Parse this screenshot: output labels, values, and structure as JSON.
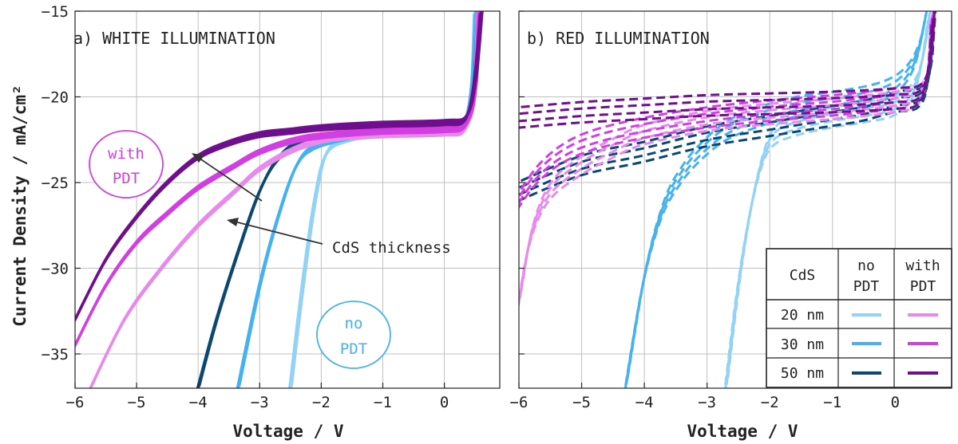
{
  "colors": {
    "no_pdt_20": "#92d2f4",
    "no_pdt_30": "#45b2ee",
    "no_pdt_50": "#0a4872",
    "with_pdt_20": "#e889ec",
    "with_pdt_30": "#d23fe0",
    "with_pdt_50": "#6e0f8c",
    "grid": "#bfbfbf",
    "arrow": "#333333"
  },
  "axes": {
    "xlabel": "Voltage / V",
    "ylabel": "Current Density / mA/cm²",
    "xlim": [
      -6,
      0.9
    ],
    "ylim": [
      -37,
      -15
    ],
    "xticks": [
      "-6",
      "-5",
      "-4",
      "-3",
      "-2",
      "-1",
      "0"
    ],
    "yticks": [
      "-15",
      "-20",
      "-25",
      "-30",
      "-35"
    ]
  },
  "annotations": {
    "panel_a": "a) WHITE ILLUMINATION",
    "panel_b": "b) RED ILLUMINATION",
    "with_pdt_line1": "with",
    "with_pdt_line2": "PDT",
    "no_pdt_line1": "no",
    "no_pdt_line2": "PDT",
    "cds_thickness": "CdS thickness"
  },
  "legend": {
    "col_header": "CdS",
    "no_pdt_line1": "no",
    "no_pdt_line2": "PDT",
    "with_pdt_line1": "with",
    "with_pdt_line2": "PDT",
    "rows": [
      "20 nm",
      "30 nm",
      "50 nm"
    ],
    "placement": "bottom-right"
  },
  "chart_data": [
    {
      "type": "line",
      "title": "a) WHITE ILLUMINATION",
      "xlabel": "Voltage / V",
      "ylabel": "Current Density / mA/cm²",
      "xlim": [
        -6,
        0.9
      ],
      "ylim": [
        -37,
        -15
      ],
      "grid": true,
      "line_style": "solid",
      "series": [
        {
          "key": "no_pdt_20",
          "x": [
            -2.5,
            -2.3,
            -2.1,
            -1.9,
            -1.5,
            -1.0,
            -0.5,
            0.0,
            0.3,
            0.45,
            0.5
          ],
          "y": [
            -37.0,
            -31.0,
            -26.0,
            -23.2,
            -22.4,
            -22.2,
            -22.1,
            -22.0,
            -21.8,
            -19.5,
            -15.0
          ]
        },
        {
          "key": "no_pdt_30",
          "x": [
            -3.35,
            -3.0,
            -2.7,
            -2.4,
            -2.1,
            -1.5,
            -1.0,
            0.0,
            0.3,
            0.45,
            0.52
          ],
          "y": [
            -37.0,
            -31.0,
            -27.0,
            -24.0,
            -22.9,
            -22.3,
            -22.1,
            -21.9,
            -21.6,
            -19.5,
            -15.0
          ]
        },
        {
          "key": "no_pdt_50",
          "x": [
            -4.0,
            -3.7,
            -3.3,
            -3.0,
            -2.7,
            -2.3,
            -1.5,
            -1.0,
            0.0,
            0.35,
            0.5,
            0.55
          ],
          "y": [
            -37.0,
            -33.0,
            -28.5,
            -25.5,
            -23.6,
            -22.6,
            -22.1,
            -21.9,
            -21.7,
            -21.4,
            -19.0,
            -15.0
          ]
        },
        {
          "key": "with_pdt_20",
          "x": [
            -5.75,
            -5.2,
            -4.6,
            -4.0,
            -3.4,
            -3.0,
            -2.4,
            -1.8,
            -1.0,
            0.0,
            0.35,
            0.5,
            0.55
          ],
          "y": [
            -37.0,
            -33.0,
            -30.0,
            -27.5,
            -25.5,
            -24.2,
            -23.0,
            -22.4,
            -22.2,
            -22.1,
            -21.8,
            -19.5,
            -15.0
          ]
        },
        {
          "key": "with_pdt_30",
          "x": [
            -6.0,
            -5.5,
            -5.0,
            -4.5,
            -4.0,
            -3.4,
            -3.0,
            -2.4,
            -1.8,
            -1.0,
            0.0,
            0.35,
            0.5,
            0.57
          ],
          "y": [
            -34.5,
            -31.0,
            -28.5,
            -26.8,
            -25.3,
            -24.0,
            -23.2,
            -22.5,
            -22.2,
            -22.0,
            -21.9,
            -21.6,
            -19.5,
            -15.0
          ]
        },
        {
          "key": "with_pdt_50",
          "x": [
            -6.0,
            -5.5,
            -5.0,
            -4.5,
            -4.0,
            -3.5,
            -3.0,
            -2.5,
            -2.0,
            -1.0,
            0.0,
            0.35,
            0.5,
            0.6
          ],
          "y": [
            -33.0,
            -29.5,
            -27.0,
            -25.0,
            -23.5,
            -22.7,
            -22.2,
            -22.0,
            -21.8,
            -21.6,
            -21.5,
            -21.2,
            -19.0,
            -15.0
          ]
        }
      ]
    },
    {
      "type": "line",
      "title": "b) RED ILLUMINATION",
      "xlabel": "Voltage / V",
      "xlim": [
        -6,
        0.9
      ],
      "ylim": [
        -37,
        -15
      ],
      "grid": true,
      "line_style": "dashed",
      "series": [
        {
          "key": "no_pdt_20",
          "x": [
            -2.7,
            -2.5,
            -2.3,
            -2.1,
            -1.9,
            -1.5,
            -1.0,
            -0.5,
            0.0,
            0.3,
            0.45,
            0.55
          ],
          "y": [
            -37.0,
            -31.0,
            -26.5,
            -23.5,
            -22.2,
            -21.6,
            -21.2,
            -20.9,
            -20.5,
            -19.5,
            -17.5,
            -15.0
          ]
        },
        {
          "key": "no_pdt_30",
          "x": [
            -4.3,
            -4.0,
            -3.7,
            -3.4,
            -3.1,
            -2.7,
            -2.2,
            -1.6,
            -1.0,
            -0.3,
            0.1,
            0.35,
            0.5
          ],
          "y": [
            -37.0,
            -30.5,
            -26.5,
            -24.5,
            -23.2,
            -22.0,
            -21.2,
            -20.6,
            -20.3,
            -19.8,
            -19.0,
            -17.5,
            -15.0
          ]
        },
        {
          "key": "no_pdt_50",
          "x": [
            -6.0,
            -5.0,
            -4.0,
            -3.0,
            -2.0,
            -1.5,
            -1.0,
            -0.5,
            0.0,
            0.4,
            0.55,
            0.6
          ],
          "y": [
            -25.5,
            -24.0,
            -23.2,
            -22.3,
            -21.7,
            -21.4,
            -21.1,
            -20.8,
            -20.3,
            -20.0,
            -18.5,
            -15.0
          ]
        },
        {
          "key": "with_pdt_20",
          "x": [
            -6.0,
            -5.8,
            -5.5,
            -5.0,
            -4.5,
            -4.0,
            -3.0,
            -2.0,
            -1.0,
            0.0,
            0.4,
            0.55,
            0.6
          ],
          "y": [
            -32.0,
            -28.0,
            -25.5,
            -24.0,
            -23.0,
            -22.2,
            -21.4,
            -21.0,
            -20.7,
            -20.3,
            -19.8,
            -18.0,
            -15.0
          ]
        },
        {
          "key": "with_pdt_30",
          "x": [
            -6.0,
            -5.7,
            -5.3,
            -4.8,
            -4.0,
            -3.0,
            -2.0,
            -1.0,
            0.0,
            0.4,
            0.55,
            0.6
          ],
          "y": [
            -26.0,
            -24.5,
            -23.3,
            -22.5,
            -21.8,
            -21.2,
            -20.8,
            -20.5,
            -20.1,
            -19.8,
            -18.0,
            -15.0
          ]
        },
        {
          "key": "with_pdt_50",
          "x": [
            -6.0,
            -5.0,
            -4.0,
            -3.0,
            -2.0,
            -1.0,
            0.0,
            0.4,
            0.55,
            0.62
          ],
          "y": [
            -21.2,
            -20.9,
            -20.7,
            -20.5,
            -20.4,
            -20.3,
            -20.1,
            -19.8,
            -18.0,
            -15.0
          ]
        }
      ]
    }
  ]
}
